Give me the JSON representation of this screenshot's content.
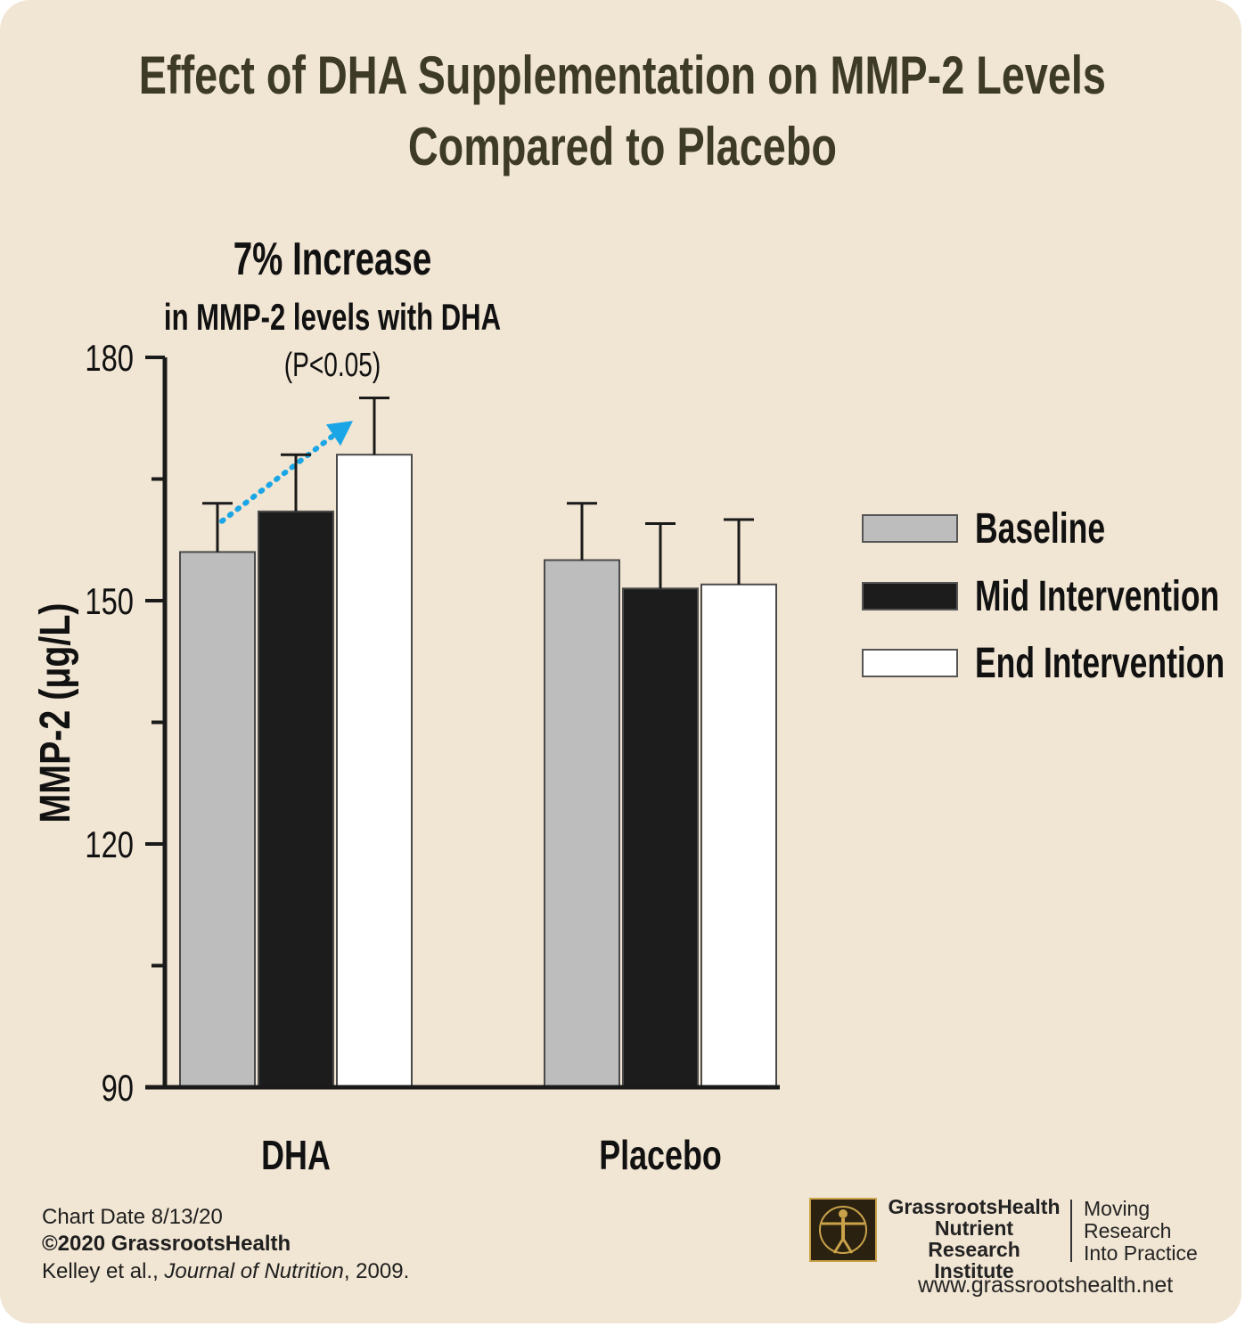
{
  "title_line1": "Effect of DHA Supplementation on MMP-2 Levels",
  "title_line2": "Compared to Placebo",
  "annotation": {
    "headline": "7% Increase",
    "subline": "in MMP-2 levels with DHA",
    "pvalue": "(P<0.05)",
    "arrow_color": "#1aa6e6"
  },
  "chart_data": {
    "type": "bar",
    "title": "Effect of DHA Supplementation on MMP-2 Levels Compared to Placebo",
    "ylabel": "MMP-2 (μg/L)",
    "xlabel": "",
    "ylim": [
      90,
      180
    ],
    "yticks": [
      90,
      120,
      150,
      180
    ],
    "yticks_minor": [
      105,
      135,
      165
    ],
    "categories": [
      "DHA",
      "Placebo"
    ],
    "series": [
      {
        "name": "Baseline",
        "color": "#bdbdbd",
        "values": [
          156,
          155
        ],
        "error": [
          6,
          7
        ]
      },
      {
        "name": "Mid Intervention",
        "color": "#1c1c1c",
        "values": [
          161,
          151.5
        ],
        "error": [
          7,
          8
        ]
      },
      {
        "name": "End Intervention",
        "color": "#ffffff",
        "values": [
          168,
          152
        ],
        "error": [
          7,
          8
        ]
      }
    ],
    "legend_position": "right",
    "grid": false
  },
  "footer": {
    "chart_date": "Chart Date 8/13/20",
    "copyright": "©2020 GrassrootsHealth",
    "citation_authors": "Kelley et al., ",
    "citation_journal": "Journal of Nutrition",
    "citation_year": ", 2009."
  },
  "logo": {
    "org_line1": "GrassrootsHealth",
    "org_line2": "Nutrient",
    "org_line3": "Research Institute",
    "tag_line1": "Moving",
    "tag_line2": "Research",
    "tag_line3": "Into Practice",
    "website": "www.grassrootshealth.net"
  }
}
